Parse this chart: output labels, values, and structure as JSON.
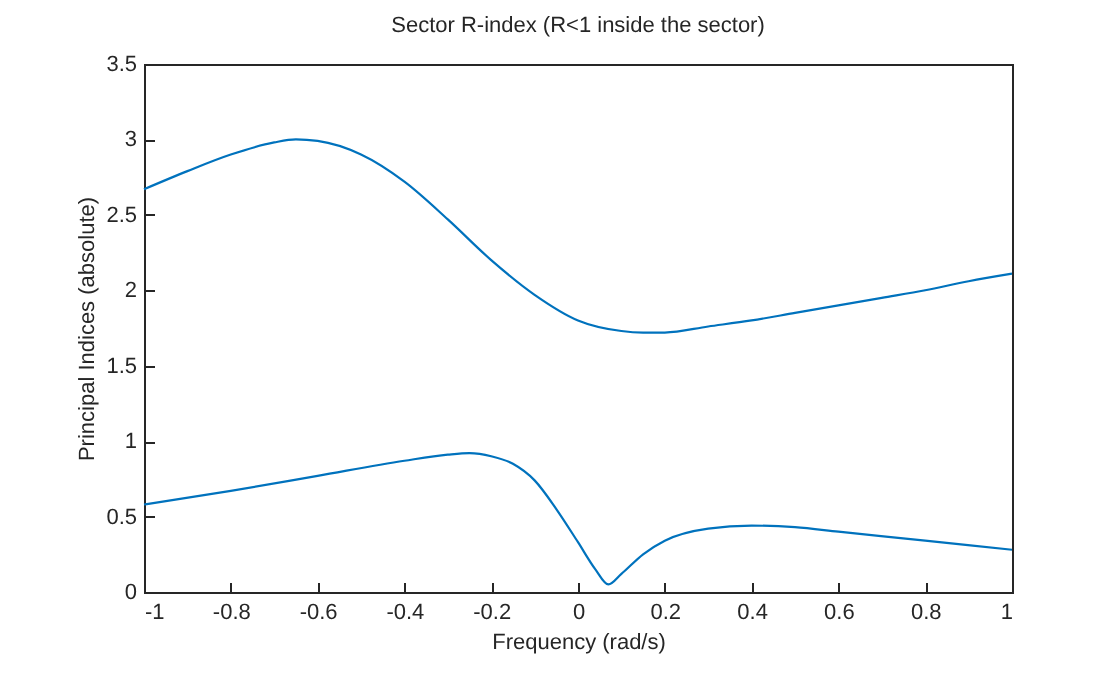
{
  "chart_data": {
    "type": "line",
    "title": "Sector R-index (R<1 inside the sector)",
    "xlabel": "Frequency (rad/s)",
    "ylabel": "Principal Indices (absolute)",
    "xlim": [
      -1,
      1
    ],
    "xticks": [
      -1,
      -0.8,
      -0.6,
      -0.4,
      -0.2,
      0,
      0.2,
      0.4,
      0.6,
      0.8,
      1
    ],
    "ylim": [
      0,
      3.5
    ],
    "yticks": [
      0,
      0.5,
      1,
      1.5,
      2,
      2.5,
      3,
      3.5
    ],
    "grid": false,
    "legend": false,
    "line_style": "solid",
    "series": [
      {
        "color": "#0072bd",
        "x": [
          -1,
          -0.9,
          -0.8,
          -0.7,
          -0.65,
          -0.6,
          -0.5,
          -0.4,
          -0.3,
          -0.2,
          -0.1,
          0,
          0.1,
          0.15,
          0.2,
          0.3,
          0.4,
          0.5,
          0.6,
          0.7,
          0.8,
          0.9,
          1
        ],
        "values": [
          2.67,
          2.79,
          2.9,
          2.98,
          3.0,
          2.99,
          2.9,
          2.72,
          2.47,
          2.2,
          1.97,
          1.8,
          1.73,
          1.72,
          1.72,
          1.76,
          1.8,
          1.85,
          1.9,
          1.95,
          2.0,
          2.06,
          2.11
        ]
      },
      {
        "color": "#0072bd",
        "x": [
          -1,
          -0.8,
          -0.6,
          -0.4,
          -0.3,
          -0.25,
          -0.2,
          -0.15,
          -0.1,
          -0.05,
          0,
          0.04,
          0.07,
          0.1,
          0.15,
          0.2,
          0.3,
          0.4,
          0.5,
          0.6,
          0.8,
          1
        ],
        "values": [
          0.58,
          0.67,
          0.77,
          0.87,
          0.91,
          0.92,
          0.9,
          0.85,
          0.74,
          0.55,
          0.33,
          0.15,
          0.05,
          0.12,
          0.25,
          0.34,
          0.42,
          0.44,
          0.43,
          0.4,
          0.34,
          0.28
        ]
      }
    ]
  }
}
